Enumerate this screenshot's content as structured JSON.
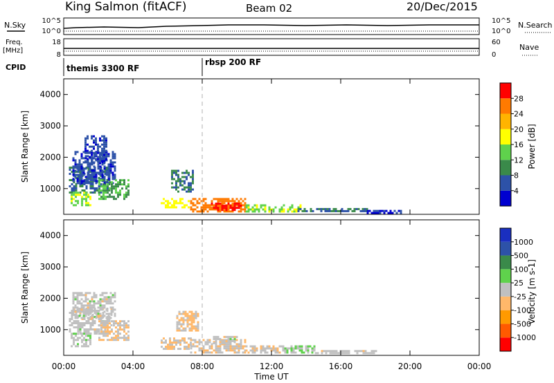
{
  "header": {
    "station": "King Salmon (fitACF)",
    "beam": "Beam 02",
    "date": "20/Dec/2015"
  },
  "summary_panels": {
    "nsky": {
      "label": "N.Sky",
      "ticks": [
        "10^5",
        "10^0"
      ]
    },
    "nsearch": {
      "label": "N.Search",
      "ticks": [
        "10^5",
        "10^0"
      ]
    },
    "freq": {
      "label_line1": "Freq.",
      "label_line2": "[MHz]",
      "ticks": [
        "18",
        "8"
      ]
    },
    "nave": {
      "label": "Nave",
      "ticks": [
        "60",
        "0"
      ]
    },
    "cpid": {
      "label": "CPID",
      "programs": [
        {
          "name": "themis 3300 RF",
          "start_hour": 0
        },
        {
          "name": "rbsp 200 RF",
          "start_hour": 8
        }
      ]
    }
  },
  "x_ticks": [
    "00:00",
    "04:00",
    "08:00",
    "12:00",
    "16:00",
    "20:00",
    "00:00"
  ],
  "x_label": "Time UT",
  "colors": {
    "power": [
      "#0000d0",
      "#2d52a8",
      "#3a8a4a",
      "#5fd24c",
      "#ffff00",
      "#ffb400",
      "#ff7a00",
      "#ff0000"
    ],
    "velocity": [
      "#ff0000",
      "#ff5a00",
      "#ff9a00",
      "#ffb86a",
      "#c0c0c0",
      "#5fd24c",
      "#3a8a4a",
      "#2d52a8",
      "#1a2fc0"
    ]
  },
  "chart_data": [
    {
      "type": "heatmap",
      "panel": "power",
      "ylabel": "Slant Range [km]",
      "xlabel": "",
      "x_range_hours": [
        0,
        24
      ],
      "ylim": [
        180,
        4500
      ],
      "y_ticks": [
        "1000",
        "2000",
        "3000",
        "4000"
      ],
      "colorbar": {
        "label": "Power [dB]",
        "ticks": [
          "4",
          "8",
          "12",
          "16",
          "20",
          "24",
          "28"
        ],
        "range": [
          0,
          32
        ]
      },
      "regions": [
        {
          "t0": 0.3,
          "t1": 2.6,
          "r0": 900,
          "r1": 1700,
          "v": 8
        },
        {
          "t0": 0.5,
          "t1": 3.0,
          "r0": 1200,
          "r1": 2200,
          "v": 5
        },
        {
          "t0": 1.2,
          "t1": 2.5,
          "r0": 1800,
          "r1": 2700,
          "v": 5
        },
        {
          "t0": 2.0,
          "t1": 3.8,
          "r0": 700,
          "r1": 1300,
          "v": 12
        },
        {
          "t0": 0.4,
          "t1": 1.5,
          "r0": 500,
          "r1": 900,
          "v": 16
        },
        {
          "t0": 5.6,
          "t1": 7.2,
          "r0": 400,
          "r1": 700,
          "v": 18
        },
        {
          "t0": 6.2,
          "t1": 7.5,
          "r0": 900,
          "r1": 1600,
          "v": 8
        },
        {
          "t0": 7.3,
          "t1": 10.5,
          "r0": 300,
          "r1": 700,
          "v": 26
        },
        {
          "t0": 8.5,
          "t1": 10.3,
          "r0": 300,
          "r1": 550,
          "v": 29
        },
        {
          "t0": 10.5,
          "t1": 13.7,
          "r0": 250,
          "r1": 500,
          "v": 15
        },
        {
          "t0": 13.5,
          "t1": 17.5,
          "r0": 250,
          "r1": 380,
          "v": 8
        },
        {
          "t0": 17.5,
          "t1": 19.5,
          "r0": 240,
          "r1": 320,
          "v": 4
        }
      ]
    },
    {
      "type": "heatmap",
      "panel": "velocity",
      "ylabel": "Slant Range [km]",
      "xlabel": "Time UT",
      "x_range_hours": [
        0,
        24
      ],
      "ylim": [
        180,
        4500
      ],
      "y_ticks": [
        "1000",
        "2000",
        "3000",
        "4000"
      ],
      "colorbar": {
        "label": "Velocity [m s-1]",
        "ticks": [
          "-1000",
          "-500",
          "-100",
          "-25",
          "25",
          "100",
          "500",
          "1000"
        ],
        "range": [
          -1500,
          1500
        ]
      },
      "regions": [
        {
          "t0": 0.3,
          "t1": 2.8,
          "r0": 900,
          "r1": 1700,
          "v": 0
        },
        {
          "t0": 0.5,
          "t1": 3.0,
          "r0": 1400,
          "r1": 2200,
          "v": 0
        },
        {
          "t0": 2.0,
          "t1": 3.8,
          "r0": 700,
          "r1": 1300,
          "v": -150
        },
        {
          "t0": 0.4,
          "t1": 1.5,
          "r0": 500,
          "r1": 900,
          "v": 60
        },
        {
          "t0": 5.6,
          "t1": 7.3,
          "r0": 400,
          "r1": 750,
          "v": -150
        },
        {
          "t0": 6.5,
          "t1": 7.8,
          "r0": 1000,
          "r1": 1600,
          "v": -200
        },
        {
          "t0": 7.3,
          "t1": 10.5,
          "r0": 300,
          "r1": 700,
          "v": -150
        },
        {
          "t0": 8.5,
          "t1": 10.0,
          "r0": 550,
          "r1": 800,
          "v": 0
        },
        {
          "t0": 10.5,
          "t1": 12.5,
          "r0": 250,
          "r1": 500,
          "v": -100
        },
        {
          "t0": 12.5,
          "t1": 14.5,
          "r0": 250,
          "r1": 500,
          "v": 150
        },
        {
          "t0": 14.5,
          "t1": 18.0,
          "r0": 250,
          "r1": 350,
          "v": 0
        }
      ]
    }
  ]
}
